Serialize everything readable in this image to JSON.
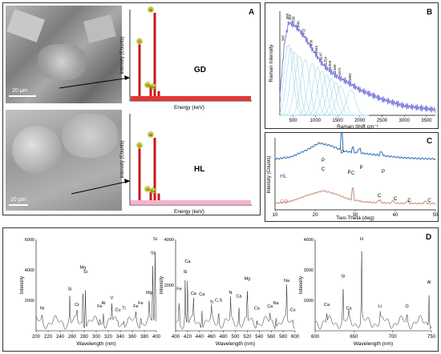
{
  "panels": {
    "A": {
      "label": "A",
      "sem_top_scale": "20 µm",
      "sem_bottom_scale": "10 µm",
      "ylabel": "Intensity (Counts)",
      "xlabel": "Energy (keV)",
      "top_sample": "GD",
      "bottom_sample": "HL",
      "top_element_labels": [
        "O",
        "Si",
        "Al",
        "Ca"
      ],
      "bottom_element_labels": [
        "O",
        "Si",
        "Al",
        "Ca"
      ]
    },
    "B": {
      "label": "B",
      "xlabel": "Raman Shift cm⁻¹",
      "ylabel": "Raman Intensity",
      "ticks": [
        500,
        1000,
        1500,
        2000,
        2500,
        3000,
        3500
      ],
      "peaks": [
        "395",
        "389",
        "455",
        "538",
        "640",
        "772",
        "930",
        "1045",
        "1147",
        "1254",
        "1359",
        "1460",
        "1571",
        "1802"
      ]
    },
    "C": {
      "label": "C",
      "xlabel": "Two-Theta (deg)",
      "ylabel": "Intensity (Counts)",
      "ticks": [
        10,
        20,
        30,
        40,
        50
      ],
      "legend": [
        "HL",
        "GD"
      ],
      "hl_peaks": [
        "P",
        "P",
        "P",
        "P",
        "P"
      ],
      "gd_peaks": [
        "C",
        "C",
        "C",
        "C",
        "C",
        "C"
      ],
      "colors": {
        "HL": "#2a6fb5",
        "GD": "#c98c7a"
      }
    },
    "D": {
      "label": "D",
      "ylabel": "Intensity",
      "xlabel": "Wavelength (nm)",
      "sub1": {
        "ticks": [
          "200",
          "220",
          "240",
          "260",
          "280",
          "300",
          "320",
          "340",
          "360",
          "380",
          "400"
        ],
        "yticks": [
          "2000",
          "4000",
          "6000"
        ],
        "lines": [
          "Ni",
          "Si",
          "Cr",
          "Mg",
          "Si",
          "Fe",
          "Al",
          "V",
          "Cu",
          "Ti",
          "Fe",
          "Fe",
          "Mg",
          "Si",
          "Si"
        ]
      },
      "sub2": {
        "ticks": [
          "400",
          "420",
          "440",
          "460",
          "480",
          "500",
          "520",
          "540",
          "560",
          "580",
          "600"
        ],
        "yticks": [
          "2000",
          "4000"
        ],
        "lines": [
          "Fe",
          "Si",
          "Ca",
          "Ca",
          "Ca",
          "Ti",
          "C,S",
          "N",
          "Ca",
          "Mg",
          "Ca",
          "Ca",
          "Na",
          "Na",
          "Cu"
        ]
      },
      "sub3": {
        "ticks": [
          "600",
          "650",
          "700",
          "750"
        ],
        "yticks": [
          "2000",
          "3000",
          "4000"
        ],
        "lines": [
          "Ca",
          "Si",
          "Ca",
          "H",
          "Li",
          "O",
          "Al"
        ]
      }
    }
  },
  "chart_data": [
    {
      "type": "bar",
      "title": "",
      "xlabel": "Energy (keV)",
      "ylabel": "Intensity (Counts)",
      "series": [
        {
          "name": "GD",
          "categories": [
            "O",
            "Al",
            "Si",
            "Ca"
          ],
          "values": [
            0.62,
            0.12,
            1.0,
            0.06
          ]
        }
      ]
    },
    {
      "type": "bar",
      "title": "",
      "xlabel": "Energy (keV)",
      "ylabel": "Intensity (Counts)",
      "series": [
        {
          "name": "HL",
          "categories": [
            "O",
            "Al",
            "Si",
            "Ca"
          ],
          "values": [
            0.62,
            0.1,
            0.75,
            0.08
          ]
        }
      ]
    },
    {
      "type": "line",
      "xlabel": "Raman Shift cm⁻¹",
      "ylabel": "Raman Intensity",
      "xlim": [
        200,
        3700
      ],
      "x": [
        200,
        300,
        395,
        455,
        538,
        640,
        772,
        930,
        1045,
        1147,
        1254,
        1359,
        1460,
        1571,
        1802,
        2000,
        2500,
        3000,
        3500,
        3700
      ],
      "values": [
        0.2,
        0.75,
        0.98,
        0.97,
        0.95,
        0.9,
        0.82,
        0.7,
        0.62,
        0.55,
        0.5,
        0.46,
        0.42,
        0.39,
        0.33,
        0.27,
        0.17,
        0.1,
        0.07,
        0.06
      ]
    },
    {
      "type": "line",
      "xlabel": "Two-Theta (deg)",
      "ylabel": "Intensity (Counts)",
      "xlim": [
        10,
        50
      ],
      "series": [
        {
          "name": "HL",
          "x": [
            10,
            14,
            18,
            21,
            24,
            27,
            29,
            33,
            38,
            42,
            46,
            50
          ],
          "values": [
            0.55,
            0.6,
            0.78,
            0.95,
            0.88,
            0.75,
            0.72,
            0.68,
            0.62,
            0.58,
            0.56,
            0.55
          ]
        },
        {
          "name": "GD",
          "x": [
            10,
            14,
            18,
            22,
            25,
            28,
            32,
            36,
            40,
            44,
            48,
            50
          ],
          "values": [
            0.05,
            0.12,
            0.3,
            0.45,
            0.35,
            0.2,
            0.1,
            0.07,
            0.06,
            0.05,
            0.05,
            0.05
          ]
        }
      ]
    }
  ]
}
